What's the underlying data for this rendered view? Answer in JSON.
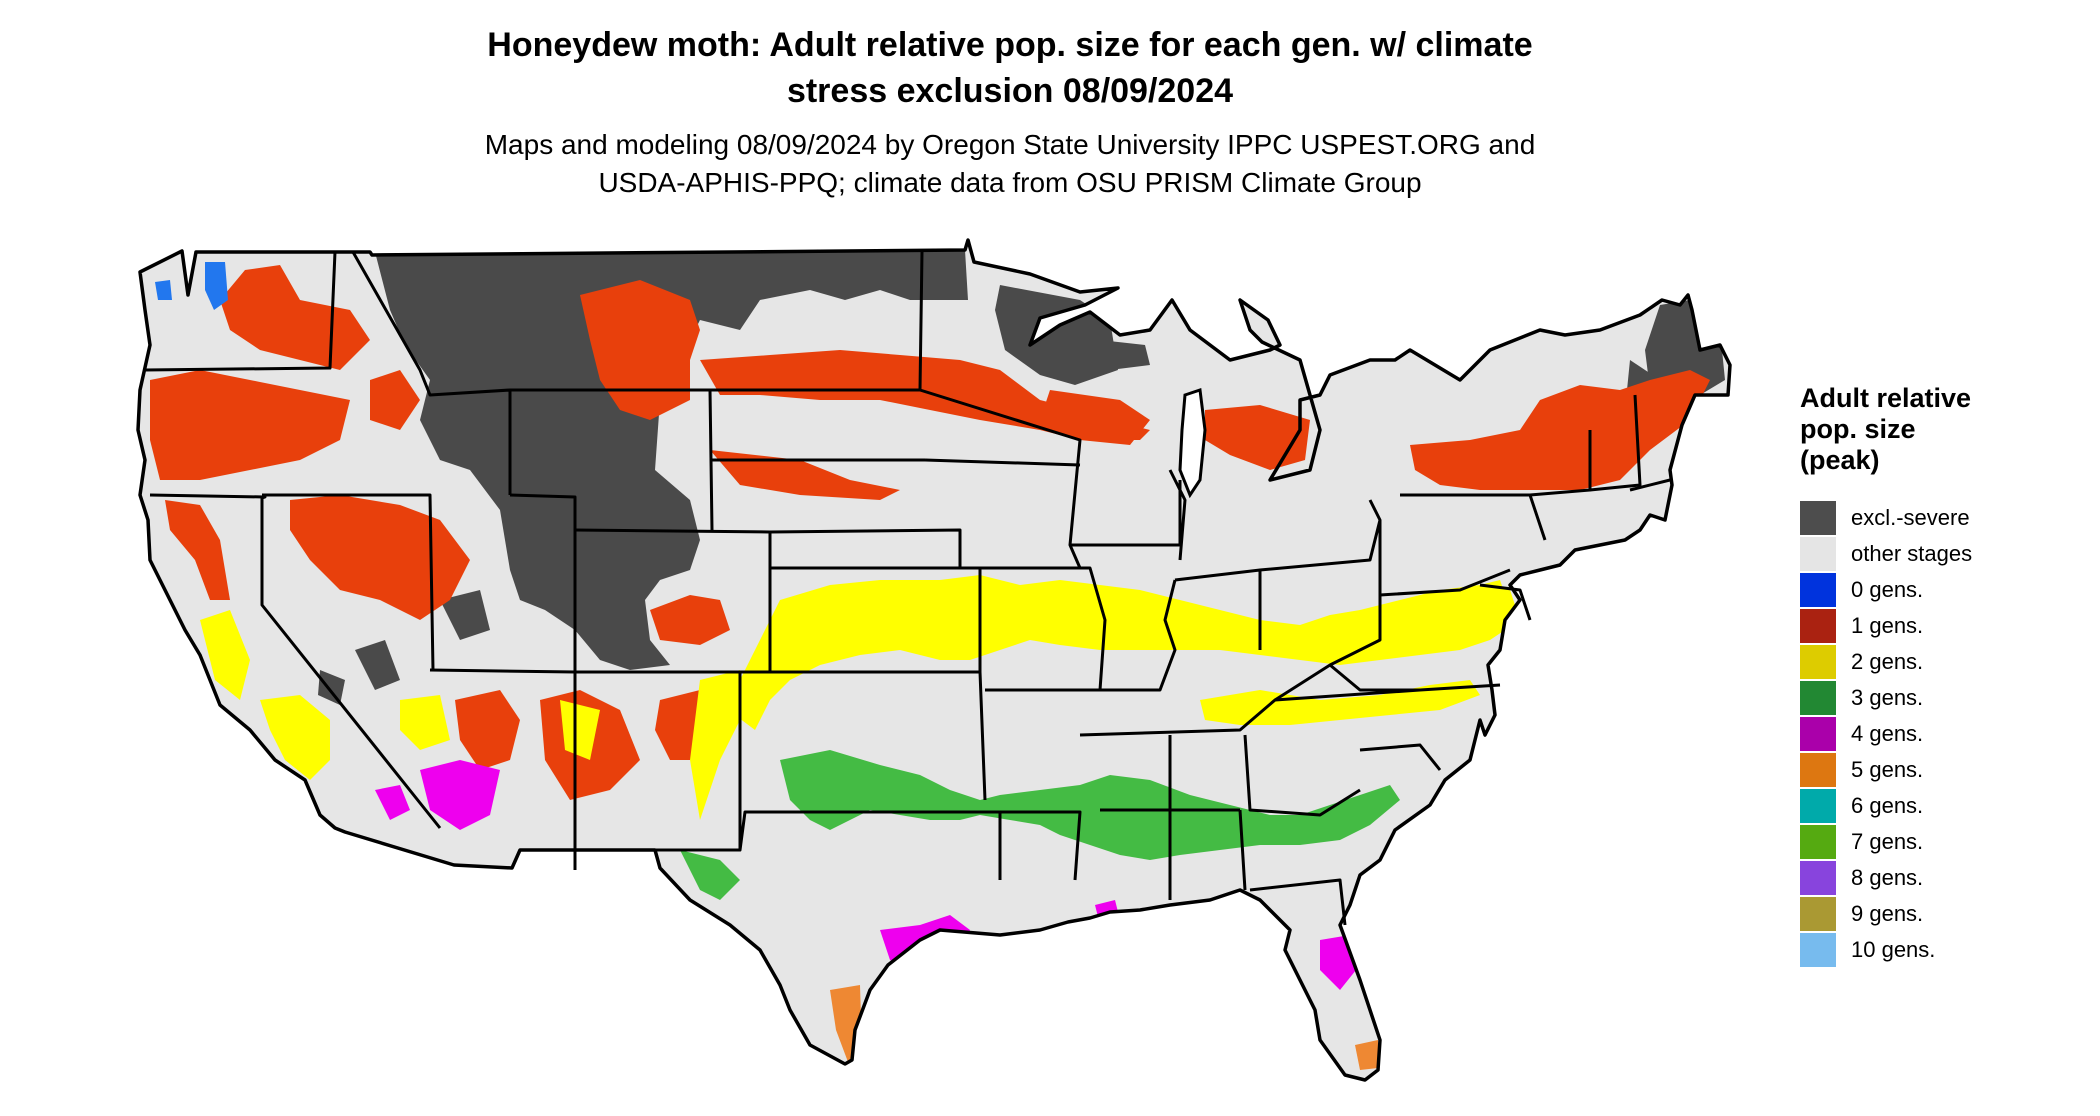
{
  "title": {
    "line1": "Honeydew moth: Adult relative pop. size for each gen. w/ climate",
    "line2": "stress exclusion 08/09/2024"
  },
  "subtitle": {
    "line1": "Maps and modeling 08/09/2024 by Oregon State University IPPC USPEST.ORG and",
    "line2": "USDA-APHIS-PPQ; climate data from OSU PRISM Climate Group"
  },
  "legend": {
    "title_lines": [
      "Adult relative",
      "pop. size",
      "(peak)"
    ],
    "items": [
      {
        "label": "excl.-severe",
        "color": "#4d4d4d"
      },
      {
        "label": "other stages",
        "color": "#e5e5e5"
      },
      {
        "label": "0 gens.",
        "color": "#0033dd"
      },
      {
        "label": "1 gens.",
        "color": "#aa2211"
      },
      {
        "label": "2 gens.",
        "color": "#ddcc00"
      },
      {
        "label": "3 gens.",
        "color": "#228833"
      },
      {
        "label": "4 gens.",
        "color": "#aa00aa"
      },
      {
        "label": "5 gens.",
        "color": "#dd7711"
      },
      {
        "label": "6 gens.",
        "color": "#00aaaa"
      },
      {
        "label": "7 gens.",
        "color": "#55aa11"
      },
      {
        "label": "8 gens.",
        "color": "#8844dd"
      },
      {
        "label": "9 gens.",
        "color": "#aa9933"
      },
      {
        "label": "10 gens.",
        "color": "#77bbee"
      }
    ]
  },
  "map": {
    "region": "Conterminous United States",
    "render_colors": {
      "land": "#e6e6e6",
      "excluded": "#4a4a4a",
      "one_gen": "#e8400c",
      "two_gen": "#ffff00",
      "three_gen": "#44bb44",
      "four_gen": "#ee00ee",
      "five_gen": "#ee8833",
      "zero_gen": "#2277ee",
      "border": "#000000"
    }
  }
}
